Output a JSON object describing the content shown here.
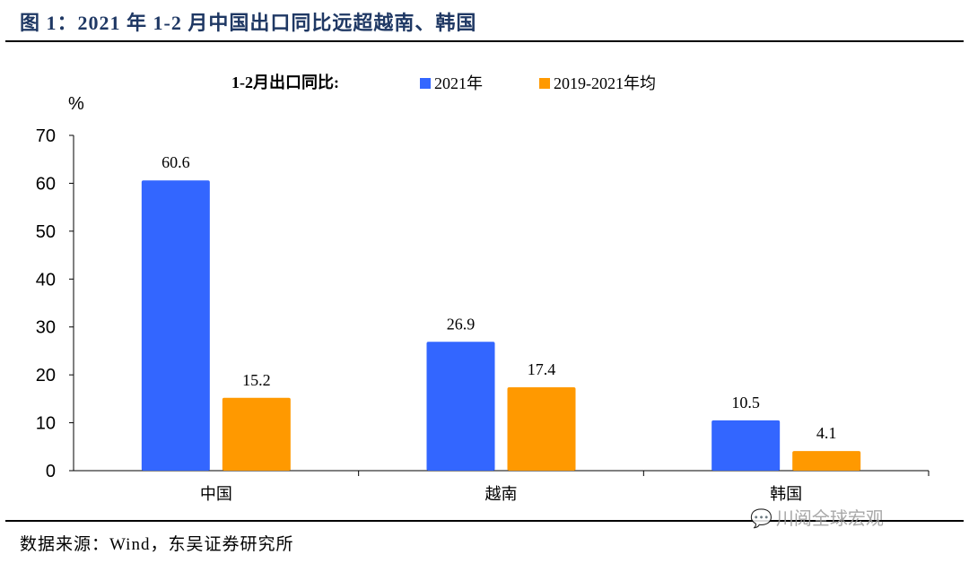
{
  "title": "图 1：2021 年 1-2 月中国出口同比远超越南、韩国",
  "source": "数据来源：Wind，东吴证券研究所",
  "watermark": "川阅全球宏观",
  "colors": {
    "title": "#1f3864",
    "series_2021": "#3366ff",
    "series_avg": "#ff9900"
  },
  "chart_data": {
    "type": "bar",
    "legend_title": "1-2月出口同比:",
    "y_unit": "%",
    "categories": [
      "中国",
      "越南",
      "韩国"
    ],
    "series": [
      {
        "name": "2021年",
        "values": [
          60.6,
          26.9,
          10.5
        ],
        "labels": [
          "60.6",
          "26.9",
          "10.5"
        ]
      },
      {
        "name": "2019-2021年均",
        "values": [
          15.2,
          17.4,
          4.1
        ],
        "labels": [
          "15.2",
          "17.4",
          "4.1"
        ]
      }
    ],
    "ylim": [
      0,
      70
    ],
    "yticks": [
      0,
      10,
      20,
      30,
      40,
      50,
      60,
      70
    ],
    "grid": false,
    "legend_position": "top"
  }
}
